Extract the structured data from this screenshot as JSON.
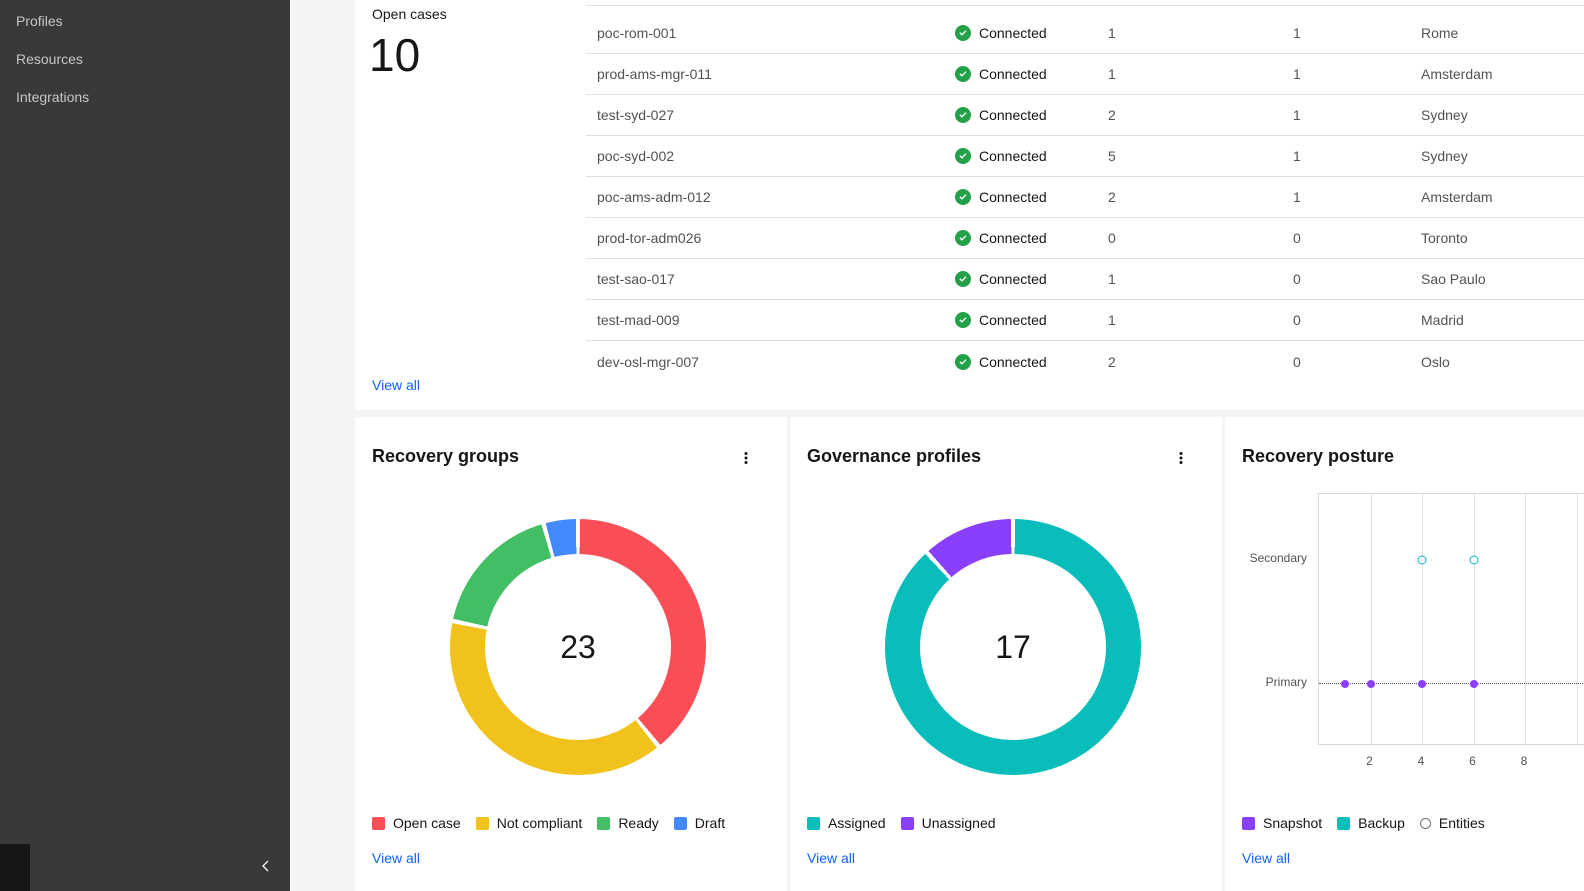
{
  "colors": {
    "sidebar_bg": "#393939",
    "link_blue": "#0f62fe",
    "success_green": "#24a148",
    "red": "#fa4d56",
    "yellow": "#f1c21b",
    "green": "#42be65",
    "blue": "#4589ff",
    "teal": "#08bdba",
    "purple": "#8a3ffc"
  },
  "sidebar": {
    "items": [
      {
        "label": "Profiles"
      },
      {
        "label": "Resources"
      },
      {
        "label": "Integrations"
      }
    ]
  },
  "open_cases": {
    "label": "Open cases",
    "value": "10",
    "view_all_label": "View all"
  },
  "connections_table": {
    "rows": [
      {
        "name": "poc-rom-001",
        "status": "Connected",
        "count1": "1",
        "count2": "1",
        "location": "Rome"
      },
      {
        "name": "prod-ams-mgr-011",
        "status": "Connected",
        "count1": "1",
        "count2": "1",
        "location": "Amsterdam"
      },
      {
        "name": "test-syd-027",
        "status": "Connected",
        "count1": "2",
        "count2": "1",
        "location": "Sydney"
      },
      {
        "name": "poc-syd-002",
        "status": "Connected",
        "count1": "5",
        "count2": "1",
        "location": "Sydney"
      },
      {
        "name": "poc-ams-adm-012",
        "status": "Connected",
        "count1": "2",
        "count2": "1",
        "location": "Amsterdam"
      },
      {
        "name": "prod-tor-adm026",
        "status": "Connected",
        "count1": "0",
        "count2": "0",
        "location": "Toronto"
      },
      {
        "name": "test-sao-017",
        "status": "Connected",
        "count1": "1",
        "count2": "0",
        "location": "Sao Paulo"
      },
      {
        "name": "test-mad-009",
        "status": "Connected",
        "count1": "1",
        "count2": "0",
        "location": "Madrid"
      },
      {
        "name": "dev-osl-mgr-007",
        "status": "Connected",
        "count1": "2",
        "count2": "0",
        "location": "Oslo"
      }
    ]
  },
  "cards": {
    "recovery_groups": {
      "title": "Recovery groups",
      "view_all_label": "View all"
    },
    "governance_profiles": {
      "title": "Governance profiles",
      "view_all_label": "View all"
    },
    "recovery_posture": {
      "title": "Recovery posture",
      "view_all_label": "View all"
    }
  },
  "chart_data": [
    {
      "id": "recovery_groups_donut",
      "type": "pie",
      "donut": true,
      "title": "Recovery groups",
      "center_total": "23",
      "segments": [
        {
          "label": "Open case",
          "value": 9,
          "color": "#fa4d56"
        },
        {
          "label": "Not compliant",
          "value": 9,
          "color": "#f1c21b"
        },
        {
          "label": "Ready",
          "value": 4,
          "color": "#42be65"
        },
        {
          "label": "Draft",
          "value": 1,
          "color": "#4589ff"
        }
      ],
      "legend_position": "bottom"
    },
    {
      "id": "governance_profiles_donut",
      "type": "pie",
      "donut": true,
      "title": "Governance profiles",
      "center_total": "17",
      "segments": [
        {
          "label": "Assigned",
          "value": 15,
          "color": "#08bdba"
        },
        {
          "label": "Unassigned",
          "value": 2,
          "color": "#8a3ffc"
        }
      ],
      "legend_position": "bottom"
    },
    {
      "id": "recovery_posture_scatter",
      "type": "scatter",
      "title": "Recovery posture",
      "x_range": [
        0,
        12
      ],
      "x_ticks": [
        2,
        4,
        6,
        8
      ],
      "x_gridlines": [
        2,
        4,
        6,
        8,
        10
      ],
      "y_categories": [
        "Secondary",
        "Primary"
      ],
      "grid": true,
      "threshold_line": {
        "y": "Primary",
        "style": "dotted"
      },
      "series": [
        {
          "name": "Snapshot",
          "color": "#8a3ffc",
          "marker": "filled-dot",
          "points": [
            {
              "x": 1,
              "y": "Primary"
            },
            {
              "x": 2,
              "y": "Primary"
            },
            {
              "x": 4,
              "y": "Primary"
            },
            {
              "x": 6,
              "y": "Primary"
            }
          ]
        },
        {
          "name": "Backup",
          "color": "#08bdba",
          "marker": "open-dot",
          "points": [
            {
              "x": 4,
              "y": "Secondary"
            },
            {
              "x": 6,
              "y": "Secondary"
            }
          ]
        }
      ],
      "legend": [
        {
          "label": "Snapshot",
          "color": "#8a3ffc",
          "marker": "square"
        },
        {
          "label": "Backup",
          "color": "#08bdba",
          "marker": "square"
        },
        {
          "label": "Entities",
          "color": "#6f6f6f",
          "marker": "ring"
        }
      ],
      "legend_position": "bottom"
    }
  ]
}
